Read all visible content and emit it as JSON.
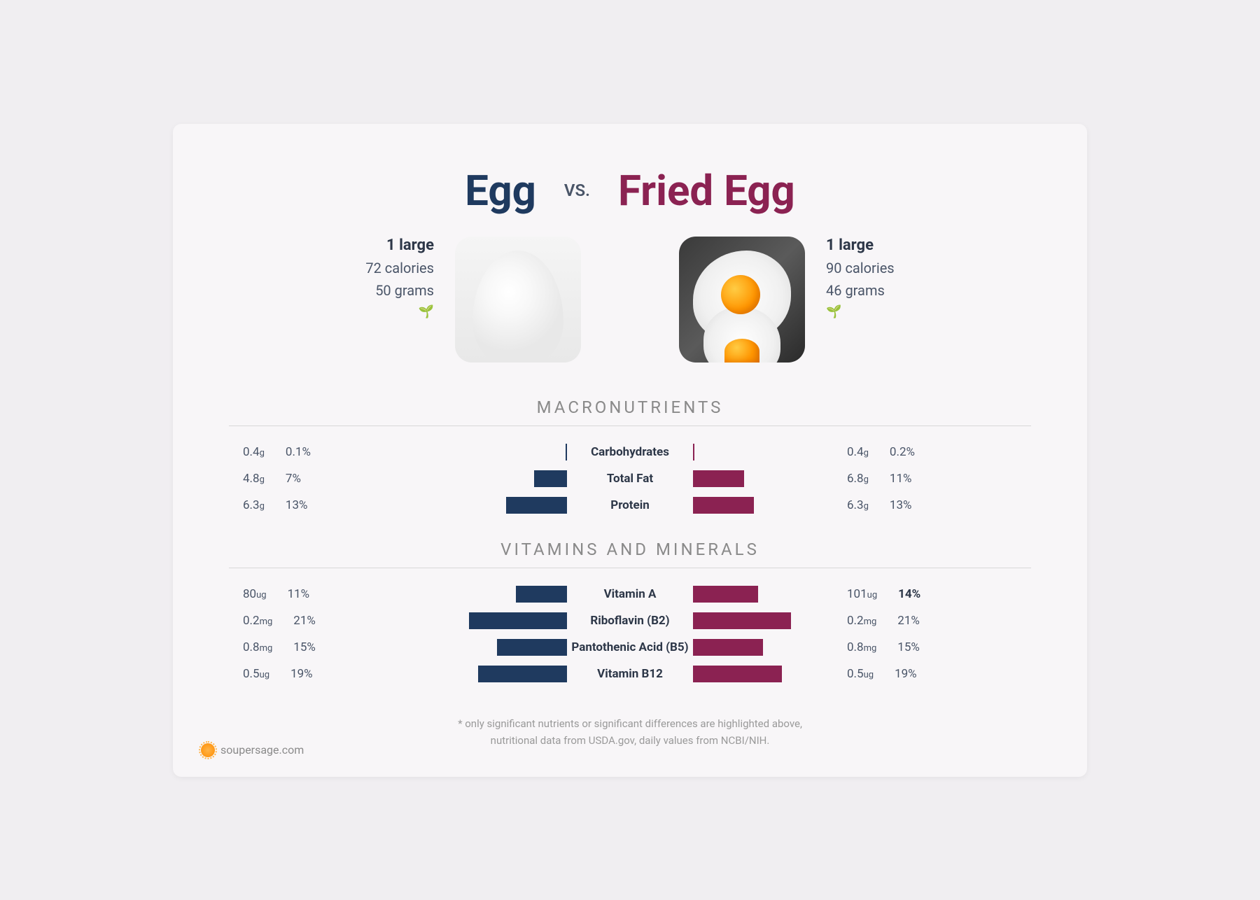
{
  "colors": {
    "left": "#1f3a5f",
    "right": "#8b2252",
    "text": "#4a5568",
    "heading": "#8a8a8a",
    "bg": "#f8f6f8"
  },
  "header": {
    "left_title": "Egg",
    "vs": "vs.",
    "right_title": "Fried Egg"
  },
  "foods": {
    "left": {
      "serving": "1 large",
      "calories": "72 calories",
      "weight": "50 grams"
    },
    "right": {
      "serving": "1 large",
      "calories": "90 calories",
      "weight": "46 grams"
    }
  },
  "sections": {
    "macros_title": "MACRONUTRIENTS",
    "vitamins_title": "VITAMINS AND MINERALS"
  },
  "bar_max_percent": 30,
  "bar_cell_width": 200,
  "macros": [
    {
      "label": "Carbohydrates",
      "left": {
        "value": "0.4",
        "unit": "g",
        "pct": "0.1%",
        "bar_pct": 0.1
      },
      "right": {
        "value": "0.4",
        "unit": "g",
        "pct": "0.2%",
        "bar_pct": 0.2
      }
    },
    {
      "label": "Total Fat",
      "left": {
        "value": "4.8",
        "unit": "g",
        "pct": "7%",
        "bar_pct": 7
      },
      "right": {
        "value": "6.8",
        "unit": "g",
        "pct": "11%",
        "bar_pct": 11
      }
    },
    {
      "label": "Protein",
      "left": {
        "value": "6.3",
        "unit": "g",
        "pct": "13%",
        "bar_pct": 13
      },
      "right": {
        "value": "6.3",
        "unit": "g",
        "pct": "13%",
        "bar_pct": 13
      }
    }
  ],
  "vitamins": [
    {
      "label": "Vitamin A",
      "left": {
        "value": "80",
        "unit": "ug",
        "pct": "11%",
        "bar_pct": 11
      },
      "right": {
        "value": "101",
        "unit": "ug",
        "pct": "14%",
        "bar_pct": 14,
        "bold": true
      }
    },
    {
      "label": "Riboflavin (B2)",
      "left": {
        "value": "0.2",
        "unit": "mg",
        "pct": "21%",
        "bar_pct": 21
      },
      "right": {
        "value": "0.2",
        "unit": "mg",
        "pct": "21%",
        "bar_pct": 21
      }
    },
    {
      "label": "Pantothenic Acid (B5)",
      "left": {
        "value": "0.8",
        "unit": "mg",
        "pct": "15%",
        "bar_pct": 15
      },
      "right": {
        "value": "0.8",
        "unit": "mg",
        "pct": "15%",
        "bar_pct": 15
      }
    },
    {
      "label": "Vitamin B12",
      "left": {
        "value": "0.5",
        "unit": "ug",
        "pct": "19%",
        "bar_pct": 19
      },
      "right": {
        "value": "0.5",
        "unit": "ug",
        "pct": "19%",
        "bar_pct": 19
      }
    }
  ],
  "footnote": {
    "line1": "* only significant nutrients or significant differences are highlighted above,",
    "line2": "nutritional data from USDA.gov, daily values from NCBI/NIH."
  },
  "brand": "soupersage.com"
}
